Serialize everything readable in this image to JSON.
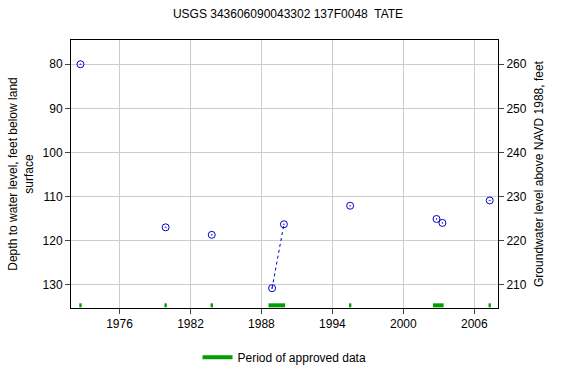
{
  "chart_data": {
    "type": "scatter",
    "title": "USGS 343606090043302 137F0048  TATE",
    "y_label_lines": [
      "Depth to water level, feet below land",
      "surface"
    ],
    "y2_label": "Groundwater level above NAVD 1988, feet",
    "xlim": [
      1971.9,
      2008.0
    ],
    "xticks": [
      1976,
      1982,
      1988,
      1994,
      2000,
      2006
    ],
    "ylim": [
      135.3,
      74.5
    ],
    "yticks": [
      80,
      90,
      100,
      110,
      120,
      130
    ],
    "y2lim": [
      204.7,
      265.5
    ],
    "y2ticks": [
      210,
      220,
      230,
      240,
      250,
      260
    ],
    "grid": true,
    "legend": "bottom",
    "series": [
      {
        "type": "scatter",
        "color": "#0000cc",
        "marker": "circle-open-dot",
        "x": [
          1972.7,
          1979.9,
          1983.8,
          1988.9,
          1989.9,
          1995.5,
          2002.8,
          2003.3,
          2007.3
        ],
        "values": [
          80.0,
          117.0,
          118.7,
          130.8,
          116.3,
          112.1,
          115.1,
          116.0,
          110.9
        ]
      },
      {
        "type": "line",
        "color": "#0000cc",
        "line_style": "dot",
        "x": [
          1988.9,
          1989.9
        ],
        "values": [
          130.8,
          116.3
        ]
      }
    ],
    "approved_periods": {
      "name": "Period of approved data",
      "color": "#00a000",
      "periods": [
        [
          1972.6,
          1972.8
        ],
        [
          1979.8,
          1980.0
        ],
        [
          1983.7,
          1983.9
        ],
        [
          1988.6,
          1990.0
        ],
        [
          1995.4,
          1995.6
        ],
        [
          2002.5,
          2003.4
        ],
        [
          2007.2,
          2007.4
        ]
      ]
    }
  }
}
